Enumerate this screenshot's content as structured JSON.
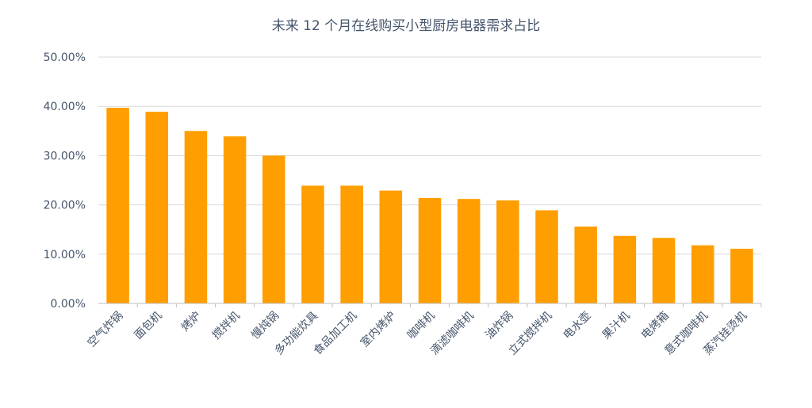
{
  "chart_data": {
    "type": "bar",
    "title": "未来 12 个月在线购买小型厨房电器需求占比",
    "xlabel": "",
    "ylabel": "",
    "ylim": [
      0,
      50
    ],
    "y_ticks": [
      "0.00%",
      "10.00%",
      "20.00%",
      "30.00%",
      "40.00%",
      "50.00%"
    ],
    "grid": true,
    "bar_color": "#ff9e00",
    "categories": [
      "空气炸锅",
      "面包机",
      "烤炉",
      "搅拌机",
      "慢炖锅",
      "多功能炊具",
      "食品加工机",
      "室内烤炉",
      "咖啡机",
      "滴滤咖啡机",
      "油炸锅",
      "立式搅拌机",
      "电水壶",
      "果汁机",
      "电烤箱",
      "意式咖啡机",
      "蒸汽挂烫机"
    ],
    "values": [
      39.7,
      38.9,
      35.0,
      33.9,
      30.0,
      23.9,
      23.9,
      22.9,
      21.4,
      21.2,
      20.9,
      18.9,
      15.6,
      13.7,
      13.3,
      11.8,
      11.1
    ]
  }
}
